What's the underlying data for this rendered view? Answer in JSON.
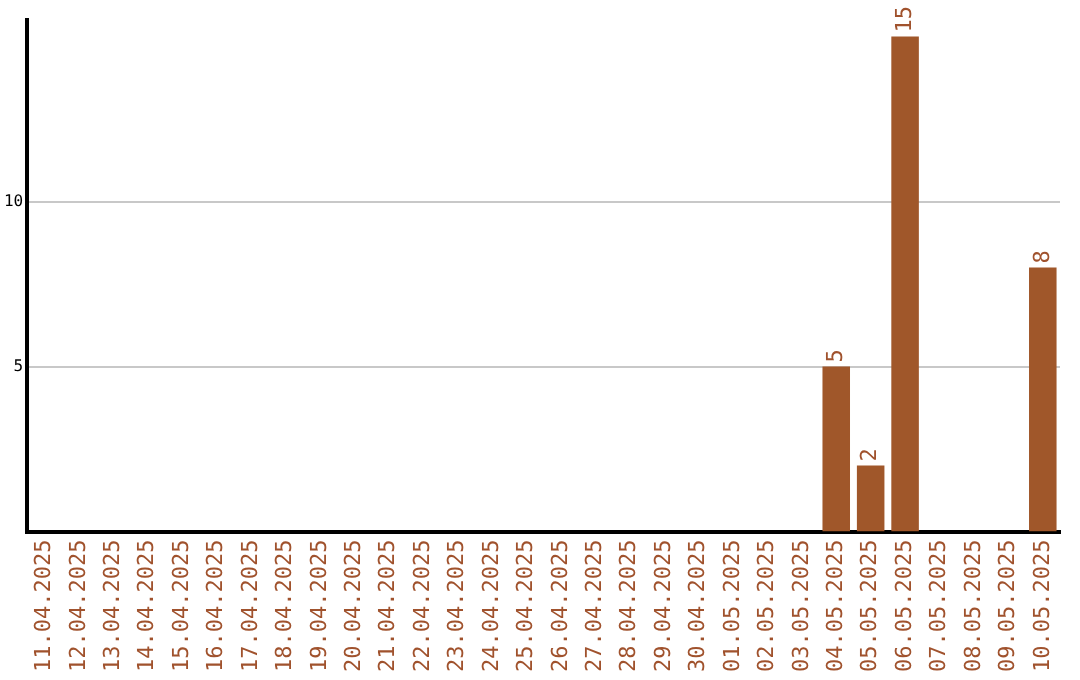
{
  "chart_data": {
    "type": "bar",
    "categories": [
      "11.04.2025",
      "12.04.2025",
      "13.04.2025",
      "14.04.2025",
      "15.04.2025",
      "16.04.2025",
      "17.04.2025",
      "18.04.2025",
      "19.04.2025",
      "20.04.2025",
      "21.04.2025",
      "22.04.2025",
      "23.04.2025",
      "24.04.2025",
      "25.04.2025",
      "26.04.2025",
      "27.04.2025",
      "28.04.2025",
      "29.04.2025",
      "30.04.2025",
      "01.05.2025",
      "02.05.2025",
      "03.05.2025",
      "04.05.2025",
      "05.05.2025",
      "06.05.2025",
      "07.05.2025",
      "08.05.2025",
      "09.05.2025",
      "10.05.2025"
    ],
    "values": [
      0,
      0,
      0,
      0,
      0,
      0,
      0,
      0,
      0,
      0,
      0,
      0,
      0,
      0,
      0,
      0,
      0,
      0,
      0,
      0,
      0,
      0,
      0,
      5,
      2,
      15,
      0,
      0,
      0,
      8
    ],
    "value_labels": [
      null,
      null,
      null,
      null,
      null,
      null,
      null,
      null,
      null,
      null,
      null,
      null,
      null,
      null,
      null,
      null,
      null,
      null,
      null,
      null,
      null,
      null,
      null,
      "5",
      "2",
      "15",
      null,
      null,
      null,
      "8"
    ],
    "color": "#a0572a",
    "ylim": [
      0,
      15.5
    ],
    "yticks": [
      5,
      10
    ],
    "grid": "y",
    "legend": false
  }
}
